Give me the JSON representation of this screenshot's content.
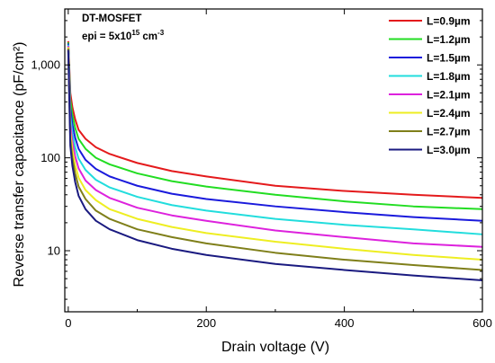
{
  "chart_data": {
    "type": "line",
    "title": "",
    "xlabel": "Drain voltage (V)",
    "ylabel": "Reverse transfer capacitance (pF/cm²)",
    "xlim": [
      -5,
      600
    ],
    "ylim": [
      2.2,
      4000
    ],
    "yscale": "log",
    "grid": false,
    "legend_position": "top-right",
    "x_ticks": [
      {
        "value": 0,
        "label": "0"
      },
      {
        "value": 200,
        "label": "200"
      },
      {
        "value": 400,
        "label": "400"
      },
      {
        "value": 600,
        "label": "600"
      }
    ],
    "y_ticks": [
      {
        "value": 10,
        "label": "10"
      },
      {
        "value": 100,
        "label": "100"
      },
      {
        "value": 1000,
        "label": "1,000"
      }
    ],
    "annotation": {
      "line1": "DT-MOSFET",
      "line2_prefix": "epi = 5x10",
      "line2_exp": "15",
      "line2_unit": " cm",
      "line2_unit_exp": "-3"
    },
    "x": [
      0,
      3,
      6,
      10,
      15,
      25,
      40,
      60,
      100,
      150,
      200,
      300,
      400,
      500,
      600
    ],
    "series": [
      {
        "name": "L=0.9µm",
        "color": "#e41a1c",
        "values": [
          1800,
          500,
          350,
          260,
          200,
          160,
          130,
          110,
          88,
          72,
          63,
          50,
          44,
          40,
          37
        ]
      },
      {
        "name": "L=1.2µm",
        "color": "#22dd22",
        "values": [
          1750,
          420,
          290,
          210,
          160,
          125,
          100,
          85,
          68,
          56,
          49,
          40,
          34,
          30,
          28
        ]
      },
      {
        "name": "L=1.5µm",
        "color": "#1a1adc",
        "values": [
          1700,
          340,
          230,
          165,
          125,
          95,
          76,
          63,
          50,
          41,
          36,
          30,
          26,
          23,
          21
        ]
      },
      {
        "name": "L=1.8µm",
        "color": "#22dddd",
        "values": [
          1650,
          280,
          185,
          130,
          98,
          74,
          58,
          48,
          38,
          31,
          27,
          22,
          19,
          17,
          15
        ]
      },
      {
        "name": "L=2.1µm",
        "color": "#dd22dd",
        "values": [
          1600,
          230,
          150,
          104,
          77,
          57,
          45,
          37,
          29,
          24,
          21,
          16.5,
          14,
          12,
          11
        ]
      },
      {
        "name": "L=2.4µm",
        "color": "#eeee22",
        "values": [
          1550,
          190,
          122,
          84,
          61,
          45,
          35,
          28,
          22,
          18,
          15.5,
          12.5,
          10.5,
          9,
          8
        ]
      },
      {
        "name": "L=2.7µm",
        "color": "#7f7f1a",
        "values": [
          1500,
          160,
          100,
          68,
          49,
          36,
          27,
          22,
          17,
          14,
          12,
          9.5,
          8,
          7,
          6.2
        ]
      },
      {
        "name": "L=3.0µm",
        "color": "#1a1a80",
        "values": [
          1450,
          135,
          82,
          55,
          39,
          28,
          21,
          17,
          13,
          10.5,
          9,
          7.2,
          6.2,
          5.4,
          4.8
        ]
      }
    ]
  }
}
